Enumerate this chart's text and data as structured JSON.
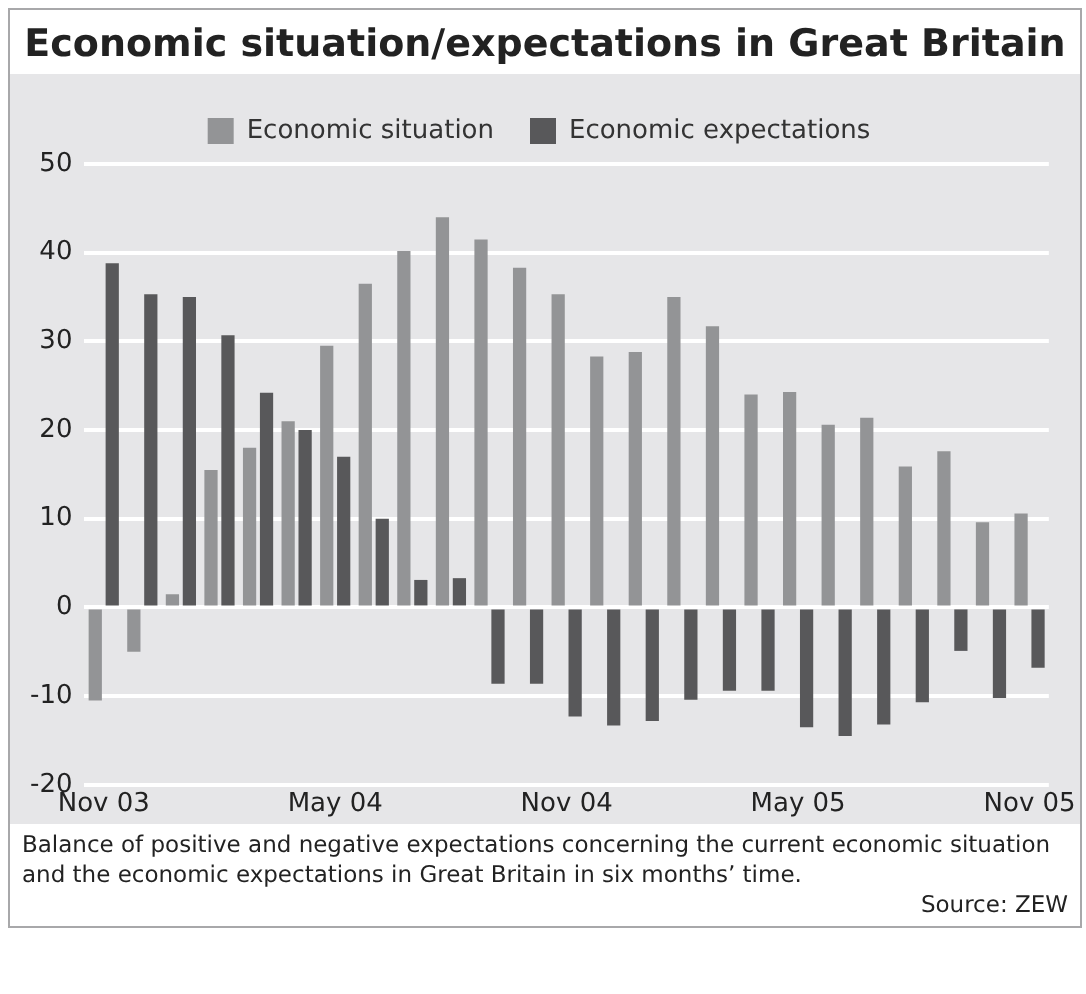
{
  "chart_data": {
    "type": "bar",
    "title": "Economic situation/expectations in Great Britain",
    "categories": [
      "Nov 03",
      null,
      null,
      null,
      null,
      null,
      "May 04",
      null,
      null,
      null,
      null,
      null,
      "Nov 04",
      null,
      null,
      null,
      null,
      null,
      "May 05",
      null,
      null,
      null,
      null,
      null,
      "Nov 05"
    ],
    "series": [
      {
        "name": "Economic situation",
        "color": "#939496",
        "values": [
          -10.5,
          -5,
          1.5,
          15.5,
          18,
          21,
          29.5,
          36.5,
          40.2,
          44,
          41.5,
          38.3,
          35.3,
          28.3,
          28.8,
          35,
          31.7,
          24,
          24.3,
          20.6,
          21.4,
          15.9,
          17.6,
          9.6,
          10.6
        ]
      },
      {
        "name": "Economic expectations",
        "color": "#58585a",
        "values": [
          38.8,
          35.3,
          35,
          30.7,
          24.2,
          20,
          17,
          10,
          3.1,
          3.3,
          -8.6,
          -8.6,
          -12.3,
          -13.3,
          -12.8,
          -10.4,
          -9.4,
          -9.4,
          -13.5,
          -14.5,
          -13.2,
          -10.7,
          -4.9,
          -10.2,
          -6.8
        ]
      }
    ],
    "ylim": [
      -20,
      50
    ],
    "yticks": [
      -20,
      -10,
      0,
      10,
      20,
      30,
      40,
      50
    ],
    "grid": "y",
    "legend": "top",
    "annotations": [
      "Balance of positive and negative expectations concerning the current economic situation and the economic expectations in Great Britain in six months’ time.",
      "Source: ZEW"
    ]
  }
}
